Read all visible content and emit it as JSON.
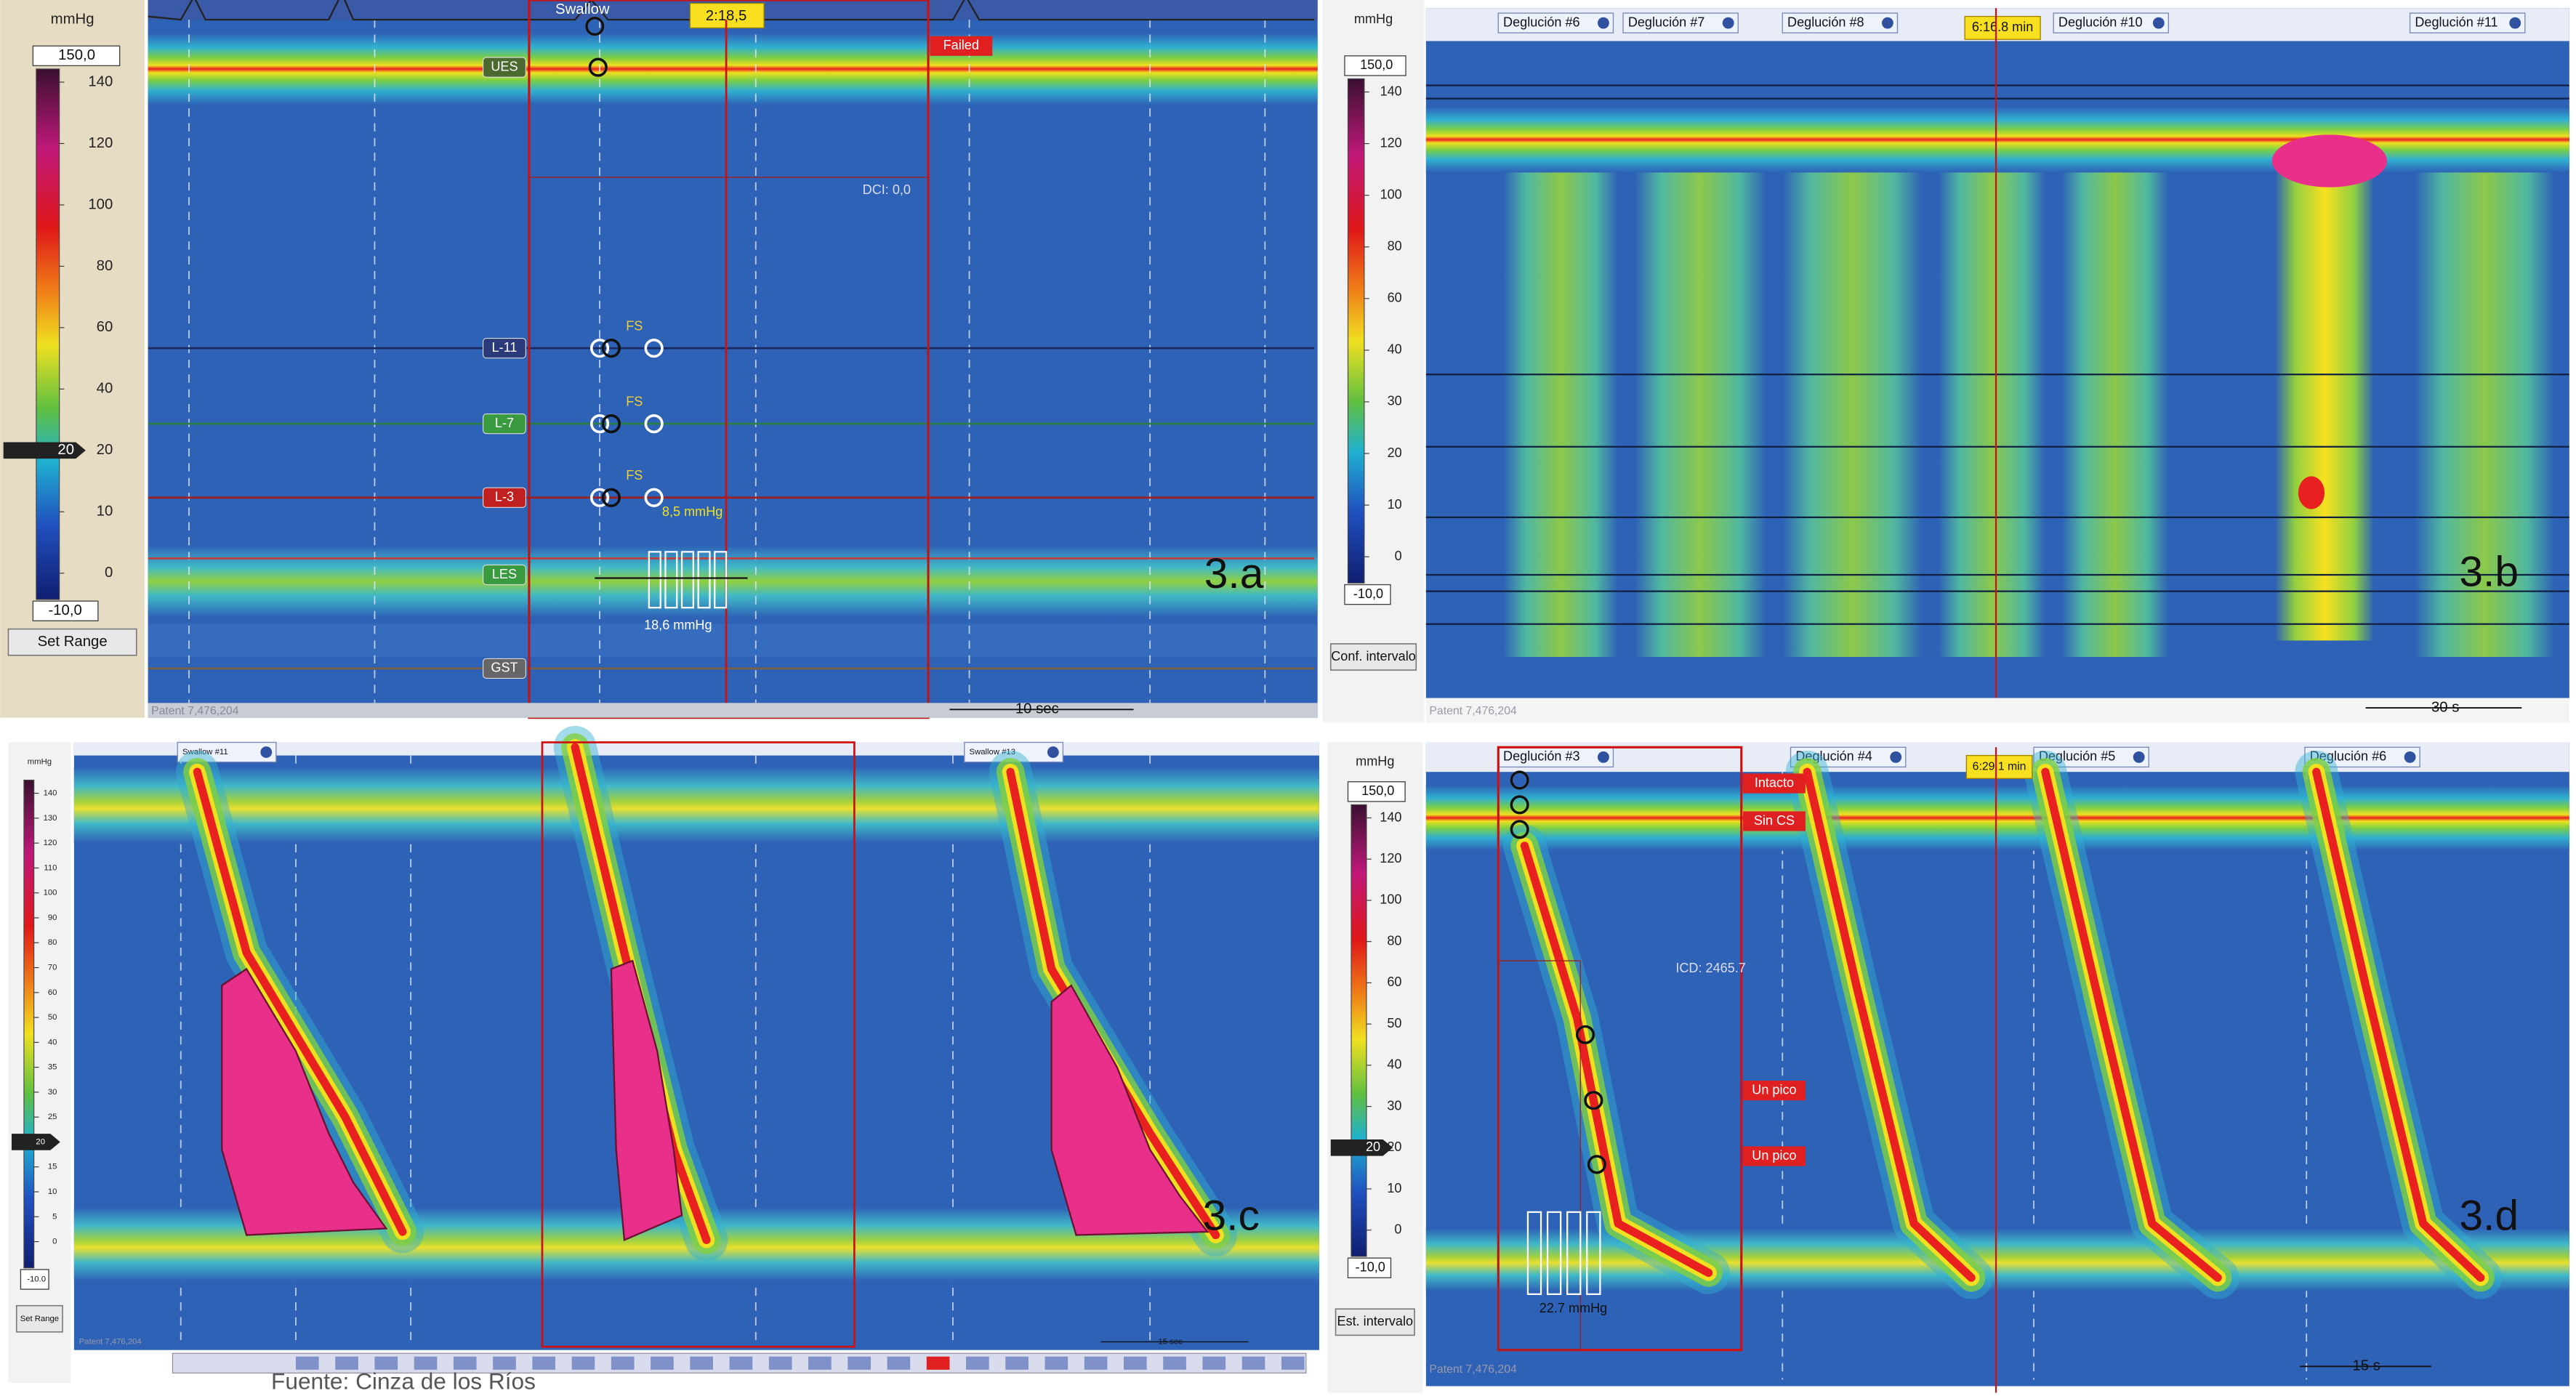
{
  "panels": [
    {
      "label": "3.a",
      "scale": {
        "unit": "mmHg",
        "max": "150,0",
        "ticks": [
          "140",
          "120",
          "100",
          "80",
          "60",
          "40",
          "20",
          "10",
          "0"
        ],
        "min": "-10,0",
        "marker": "20",
        "button": "Set Range"
      },
      "sensors": [
        "UES",
        "L-11",
        "L-7",
        "L-3",
        "LES",
        "GST"
      ],
      "header": [
        "Swallow"
      ],
      "time": "2:18,5",
      "status": [
        "Failed"
      ],
      "dci": "DCI: 0,0",
      "fs": [
        "FS",
        "FS",
        "FS"
      ],
      "pressure": [
        "8,5 mmHg",
        "18,6 mmHg"
      ],
      "scale_bar": "10 sec",
      "patent": "Patent 7,476,204"
    },
    {
      "label": "3.b",
      "scale": {
        "unit": "mmHg",
        "max": "150,0",
        "ticks": [
          "140",
          "120",
          "100",
          "80",
          "60",
          "40",
          "30",
          "20",
          "10",
          "0"
        ],
        "min": "-10,0",
        "button": "Conf. intervalo"
      },
      "header": [
        "Deglución #6",
        "Deglución #7",
        "Deglución #8",
        "Deglución #10",
        "Deglución #11"
      ],
      "time": "6:16.8 min",
      "scale_bar": "30 s",
      "patent": "Patent 7,476,204"
    },
    {
      "label": "3.c",
      "scale": {
        "unit": "mmHg",
        "ticks": [
          "140",
          "130",
          "120",
          "110",
          "100",
          "90",
          "80",
          "70",
          "60",
          "50",
          "40",
          "35",
          "30",
          "25",
          "20",
          "15",
          "10",
          "5",
          "0"
        ],
        "min": "-10.0",
        "marker": "20",
        "button": "Set Range"
      },
      "header": [
        "Swallow #11",
        "Swallow #13"
      ],
      "scale_bar": "15 sec",
      "patent": "Patent 7,476,204"
    },
    {
      "label": "3.d",
      "scale": {
        "unit": "mmHg",
        "max": "150,0",
        "ticks": [
          "140",
          "120",
          "100",
          "80",
          "60",
          "50",
          "40",
          "30",
          "20",
          "10",
          "0"
        ],
        "min": "-10,0",
        "marker": "20",
        "button": "Est. intervalo"
      },
      "header": [
        "Deglución #3",
        "Deglución #4",
        "Deglución #5",
        "Deglución #6"
      ],
      "time": "6:29.1 min",
      "status": [
        "Intacto",
        "Sin CS",
        "Un pico",
        "Un pico"
      ],
      "dci": "ICD: 2465.7",
      "pressure": [
        "22.7 mmHg"
      ],
      "scale_bar": "15 s",
      "patent": "Patent 7,476,204"
    }
  ],
  "footer": "Fuente: Cinza de los Ríos"
}
